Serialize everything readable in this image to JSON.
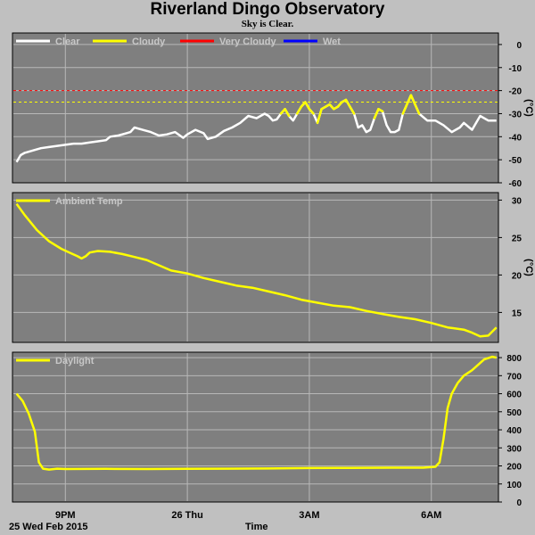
{
  "header": {
    "title": "Riverland Dingo Observatory",
    "subtitle": "Sky is Clear."
  },
  "footer": {
    "date_label": "25 Wed Feb 2015",
    "x_axis_label": "Time"
  },
  "colors": {
    "plot_bg": "#7f7f7f",
    "page_bg": "#c0c0c0",
    "clear": "#ffffff",
    "cloudy": "#ffff00",
    "very_cloudy": "#ff0000",
    "wet": "#0000ff",
    "grid": "#b8b8b8"
  },
  "chart_data": [
    {
      "type": "line",
      "title": "",
      "ylabel": "(°C)",
      "ylim": [
        -60,
        5
      ],
      "yticks": [
        0,
        -10,
        -20,
        -30,
        -40,
        -50,
        -60
      ],
      "xlim": [
        19.7,
        31.65
      ],
      "xticks": [
        {
          "x": 21,
          "label": "9PM"
        },
        {
          "x": 24,
          "label": "26 Thu"
        },
        {
          "x": 27,
          "label": "3AM"
        },
        {
          "x": 30,
          "label": "6AM"
        }
      ],
      "legend": [
        "Clear",
        "Cloudy",
        "Very Cloudy",
        "Wet"
      ],
      "thresholds": [
        {
          "y": -20,
          "series": "Very Cloudy"
        },
        {
          "y": -25,
          "series": "Cloudy"
        }
      ],
      "grid": true,
      "series": [
        {
          "name": "Clear",
          "x": [
            19.8,
            19.9,
            20.0,
            20.2,
            20.4,
            20.6,
            20.8,
            21.0,
            21.2,
            21.4,
            21.6,
            21.8,
            22.0,
            22.1,
            22.3,
            22.5,
            22.6,
            22.7,
            22.9,
            23.1,
            23.3,
            23.5,
            23.7,
            23.9,
            24.0,
            24.2,
            24.4,
            24.5,
            24.7,
            24.9,
            25.1,
            25.3,
            25.5,
            25.7,
            25.9,
            26.0,
            26.1,
            26.2,
            26.3,
            26.4,
            26.5,
            26.6,
            26.7,
            26.8,
            26.9,
            27.0,
            27.1,
            27.2,
            27.3,
            27.4,
            27.5,
            27.6,
            27.7,
            27.8,
            27.9,
            28.0,
            28.1,
            28.2,
            28.3,
            28.4,
            28.5,
            28.6,
            28.7,
            28.8,
            28.9,
            29.0,
            29.1,
            29.2,
            29.3,
            29.5,
            29.7,
            29.9,
            30.1,
            30.3,
            30.5,
            30.7,
            30.8,
            31.0,
            31.2,
            31.4,
            31.6
          ],
          "y": [
            -51,
            -48,
            -47,
            -46,
            -45,
            -44.5,
            -44,
            -43.5,
            -43,
            -43,
            -42.5,
            -42,
            -41.5,
            -40,
            -39.5,
            -38.5,
            -38,
            -36,
            -37,
            -38,
            -39.5,
            -39,
            -38,
            -40.5,
            -39,
            -37,
            -38.5,
            -41,
            -40,
            -37.5,
            -36,
            -34,
            -31,
            -32,
            -30,
            -31,
            -33,
            -32.5,
            -30,
            -28,
            -31,
            -33,
            -30,
            -27,
            -25,
            -28,
            -30,
            -34,
            -28,
            -27,
            -26,
            -28,
            -27,
            -25,
            -24,
            -27,
            -30,
            -36,
            -35,
            -38,
            -37,
            -32,
            -28,
            -29,
            -35,
            -38,
            -38,
            -37,
            -30,
            -22,
            -30,
            -33,
            -33,
            -35,
            -38,
            -36,
            -34,
            -37,
            -31,
            -33,
            -33
          ]
        },
        {
          "name": "Cloudy",
          "x": [],
          "y": []
        },
        {
          "name": "Very Cloudy",
          "x": [],
          "y": []
        },
        {
          "name": "Wet",
          "x": [],
          "y": []
        }
      ]
    },
    {
      "type": "line",
      "title": "",
      "ylabel": "(°C)",
      "ylim": [
        11,
        31
      ],
      "yticks": [
        30,
        25,
        20,
        15
      ],
      "xlim": [
        19.7,
        31.65
      ],
      "xticks": [
        {
          "x": 21,
          "label": "9PM"
        },
        {
          "x": 24,
          "label": "26 Thu"
        },
        {
          "x": 27,
          "label": "3AM"
        },
        {
          "x": 30,
          "label": "6AM"
        }
      ],
      "legend": [
        "Ambient Temp"
      ],
      "grid": true,
      "series": [
        {
          "name": "Ambient Temp",
          "x": [
            19.8,
            20.0,
            20.3,
            20.6,
            20.9,
            21.1,
            21.3,
            21.4,
            21.5,
            21.6,
            21.8,
            22.1,
            22.4,
            22.7,
            23.0,
            23.3,
            23.6,
            24.0,
            24.4,
            24.8,
            25.2,
            25.6,
            26.0,
            26.4,
            26.8,
            27.2,
            27.6,
            28.0,
            28.4,
            28.8,
            29.2,
            29.6,
            30.0,
            30.4,
            30.8,
            31.0,
            31.2,
            31.4,
            31.6
          ],
          "y": [
            29.5,
            28,
            26,
            24.5,
            23.5,
            23,
            22.5,
            22.2,
            22.5,
            23,
            23.2,
            23.1,
            22.8,
            22.4,
            22,
            21.3,
            20.6,
            20.2,
            19.6,
            19.1,
            18.6,
            18.3,
            17.8,
            17.3,
            16.7,
            16.3,
            15.9,
            15.7,
            15.2,
            14.8,
            14.4,
            14.1,
            13.6,
            13.0,
            12.7,
            12.3,
            11.8,
            11.9,
            13.0
          ]
        }
      ]
    },
    {
      "type": "line",
      "title": "",
      "ylabel": "",
      "ylim": [
        0,
        830
      ],
      "yticks": [
        800,
        700,
        600,
        500,
        400,
        300,
        200,
        100,
        0
      ],
      "xlim": [
        19.7,
        31.65
      ],
      "xticks": [
        {
          "x": 21,
          "label": "9PM"
        },
        {
          "x": 24,
          "label": "26 Thu"
        },
        {
          "x": 27,
          "label": "3AM"
        },
        {
          "x": 30,
          "label": "6AM"
        }
      ],
      "legend": [
        "Daylight"
      ],
      "grid": true,
      "series": [
        {
          "name": "Daylight",
          "x": [
            19.8,
            19.95,
            20.1,
            20.25,
            20.35,
            20.45,
            20.6,
            20.8,
            21.0,
            22.0,
            23.0,
            24.0,
            25.0,
            26.0,
            27.0,
            28.0,
            29.0,
            29.8,
            30.1,
            30.2,
            30.3,
            30.4,
            30.5,
            30.65,
            30.8,
            31.0,
            31.1,
            31.3,
            31.5,
            31.6
          ],
          "y": [
            600,
            560,
            490,
            390,
            220,
            185,
            180,
            185,
            183,
            184,
            183,
            184,
            185,
            186,
            188,
            189,
            190,
            190,
            195,
            220,
            350,
            520,
            600,
            660,
            700,
            730,
            750,
            790,
            805,
            800
          ]
        }
      ]
    }
  ]
}
